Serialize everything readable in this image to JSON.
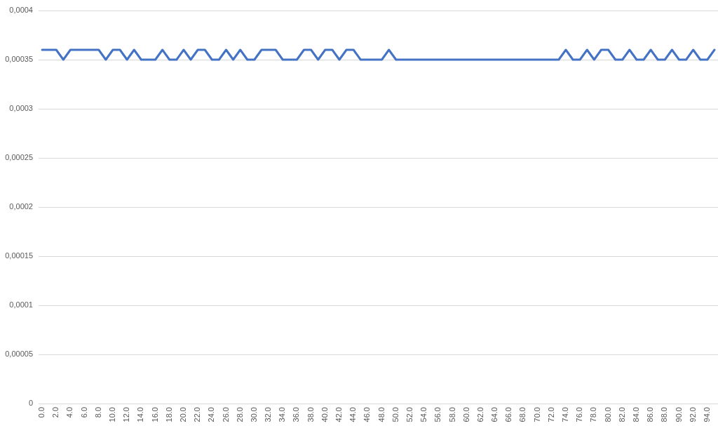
{
  "chart_data": {
    "type": "line",
    "categories": [
      "0.0",
      null,
      "2.0",
      null,
      "4.0",
      null,
      "6.0",
      null,
      "8.0",
      null,
      "10.0",
      null,
      "12.0",
      null,
      "14.0",
      null,
      "16.0",
      null,
      "18.0",
      null,
      "20.0",
      null,
      "22.0",
      null,
      "24.0",
      null,
      "26.0",
      null,
      "28.0",
      null,
      "30.0",
      null,
      "32.0",
      null,
      "34.0",
      null,
      "36.0",
      null,
      "38.0",
      null,
      "40.0",
      null,
      "42.0",
      null,
      "44.0",
      null,
      "46.0",
      null,
      "48.0",
      null,
      "50.0",
      null,
      "52.0",
      null,
      "54.0",
      null,
      "56.0",
      null,
      "58.0",
      null,
      "60.0",
      null,
      "62.0",
      null,
      "64.0",
      null,
      "66.0",
      null,
      "68.0",
      null,
      "70.0",
      null,
      "72.0",
      null,
      "74.0",
      null,
      "76.0",
      null,
      "78.0",
      null,
      "80.0",
      null,
      "82.0",
      null,
      "84.0",
      null,
      "86.0",
      null,
      "88.0",
      null,
      "90.0",
      null,
      "92.0",
      null,
      "94.0",
      null
    ],
    "values": [
      0.00036,
      0.00036,
      0.00036,
      0.00035,
      0.00036,
      0.00036,
      0.00036,
      0.00036,
      0.00036,
      0.00035,
      0.00036,
      0.00036,
      0.00035,
      0.00036,
      0.00035,
      0.00035,
      0.00035,
      0.00036,
      0.00035,
      0.00035,
      0.00036,
      0.00035,
      0.00036,
      0.00036,
      0.00035,
      0.00035,
      0.00036,
      0.00035,
      0.00036,
      0.00035,
      0.00035,
      0.00036,
      0.00036,
      0.00036,
      0.00035,
      0.00035,
      0.00035,
      0.00036,
      0.00036,
      0.00035,
      0.00036,
      0.00036,
      0.00035,
      0.00036,
      0.00036,
      0.00035,
      0.00035,
      0.00035,
      0.00035,
      0.00036,
      0.00035,
      0.00035,
      0.00035,
      0.00035,
      0.00035,
      0.00035,
      0.00035,
      0.00035,
      0.00035,
      0.00035,
      0.00035,
      0.00035,
      0.00035,
      0.00035,
      0.00035,
      0.00035,
      0.00035,
      0.00035,
      0.00035,
      0.00035,
      0.00035,
      0.00035,
      0.00035,
      0.00035,
      0.00036,
      0.00035,
      0.00035,
      0.00036,
      0.00035,
      0.00036,
      0.00036,
      0.00035,
      0.00035,
      0.00036,
      0.00035,
      0.00035,
      0.00036,
      0.00035,
      0.00035,
      0.00036,
      0.00035,
      0.00035,
      0.00036,
      0.00035,
      0.00035,
      0.00036
    ],
    "color": "#4472c4",
    "ylim": [
      0,
      0.0004
    ],
    "yticks": [
      0,
      {
        "value": 5e-05,
        "label": "0,00005"
      },
      {
        "value": 0.0001,
        "label": "0,0001"
      },
      {
        "value": 0.00015,
        "label": "0,00015"
      },
      {
        "value": 0.0002,
        "label": "0,0002"
      },
      {
        "value": 0.00025,
        "label": "0,00025"
      },
      {
        "value": 0.0003,
        "label": "0,0003"
      },
      {
        "value": 0.00035,
        "label": "0,00035"
      },
      {
        "value": 0.0004,
        "label": "0,0004"
      }
    ],
    "grid": "y",
    "marker": "none",
    "line_style": "solid"
  }
}
